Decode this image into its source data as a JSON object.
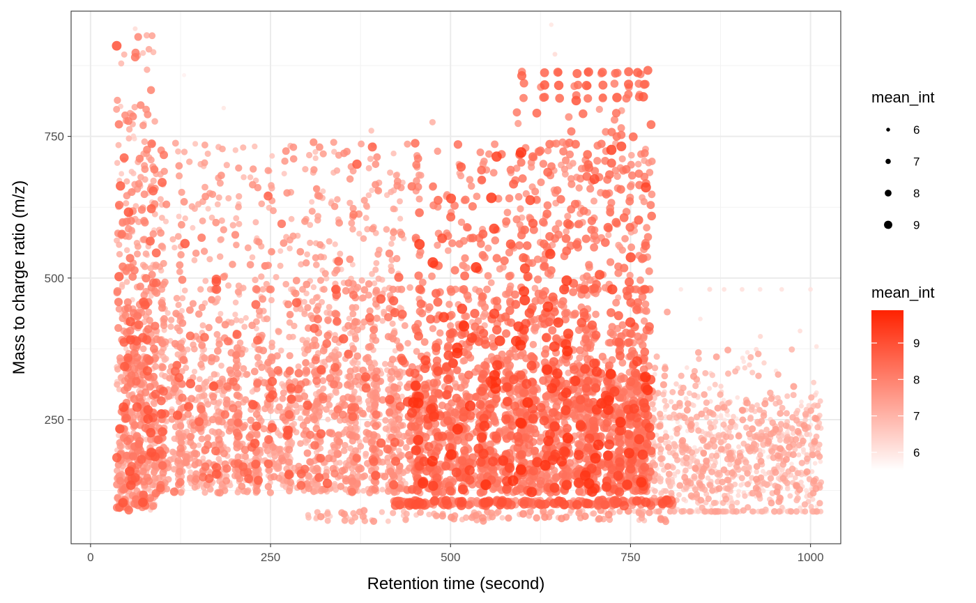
{
  "chart_data": {
    "type": "scatter",
    "title": "",
    "xlabel": "Retention time (second)",
    "ylabel": "Mass to charge ratio (m/z)",
    "xlim": [
      -27,
      1042
    ],
    "ylim": [
      31,
      971
    ],
    "x_ticks": [
      0,
      250,
      500,
      750,
      1000
    ],
    "x_tick_labels": [
      "0",
      "250",
      "500",
      "750",
      "1000"
    ],
    "y_ticks": [
      250,
      500,
      750
    ],
    "y_tick_labels": [
      "250",
      "500",
      "750"
    ],
    "grid": true,
    "color_low": "#ffffff",
    "color_high": "#ff2200",
    "point_count_approx": 6000,
    "legend_size": {
      "title": "mean_int",
      "values": [
        6,
        7,
        8,
        9
      ],
      "labels": [
        "6",
        "7",
        "8",
        "9"
      ]
    },
    "legend_color": {
      "title": "mean_int",
      "range": [
        5.5,
        9.9
      ],
      "ticks": [
        6,
        7,
        8,
        9
      ],
      "labels": [
        "6",
        "7",
        "8",
        "9"
      ]
    },
    "clusters_description": "dense columns at x≈40-90, many vertical streaks across 100-770, block of large points at x 600-770 y 815-865, sparser region x 780-1015 with y 90-480",
    "points_sample": [
      {
        "x": 55,
        "y": 85,
        "v": 8.6
      },
      {
        "x": 60,
        "y": 200,
        "v": 8.2
      },
      {
        "x": 65,
        "y": 340,
        "v": 7.9
      },
      {
        "x": 70,
        "y": 710,
        "v": 8.4
      },
      {
        "x": 62,
        "y": 920,
        "v": 6.8
      },
      {
        "x": 50,
        "y": 795,
        "v": 7.4
      },
      {
        "x": 130,
        "y": 270,
        "v": 7.0
      },
      {
        "x": 160,
        "y": 480,
        "v": 6.4
      },
      {
        "x": 185,
        "y": 565,
        "v": 7.2
      },
      {
        "x": 250,
        "y": 470,
        "v": 7.5
      },
      {
        "x": 315,
        "y": 640,
        "v": 7.6
      },
      {
        "x": 340,
        "y": 385,
        "v": 7.8
      },
      {
        "x": 430,
        "y": 610,
        "v": 7.5
      },
      {
        "x": 475,
        "y": 775,
        "v": 7.0
      },
      {
        "x": 500,
        "y": 330,
        "v": 8.5
      },
      {
        "x": 580,
        "y": 285,
        "v": 8.9
      },
      {
        "x": 600,
        "y": 860,
        "v": 8.3
      },
      {
        "x": 630,
        "y": 840,
        "v": 7.9
      },
      {
        "x": 640,
        "y": 550,
        "v": 8.3
      },
      {
        "x": 690,
        "y": 820,
        "v": 8.2
      },
      {
        "x": 720,
        "y": 580,
        "v": 8.0
      },
      {
        "x": 760,
        "y": 760,
        "v": 8.6
      },
      {
        "x": 765,
        "y": 840,
        "v": 8.4
      },
      {
        "x": 800,
        "y": 95,
        "v": 8.0
      },
      {
        "x": 900,
        "y": 480,
        "v": 6.2
      },
      {
        "x": 1000,
        "y": 480,
        "v": 6.0
      },
      {
        "x": 1010,
        "y": 180,
        "v": 6.8
      }
    ]
  }
}
